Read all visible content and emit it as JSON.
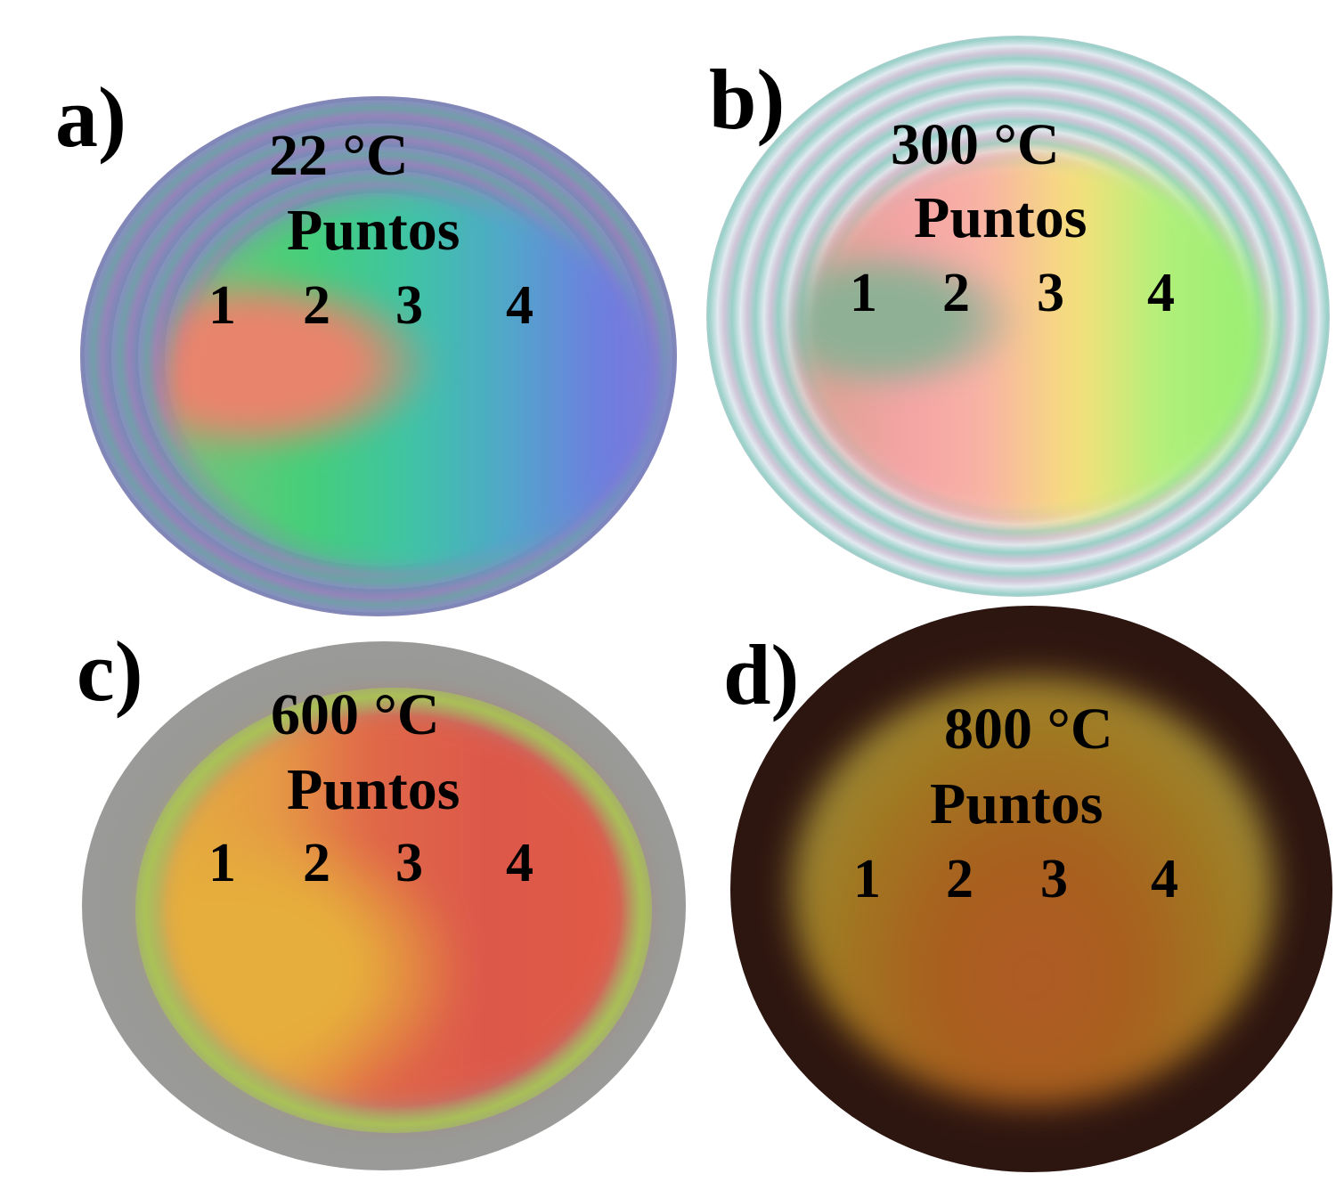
{
  "panels": [
    {
      "letter": "a)",
      "temperature": "22 °C",
      "points_label": "Puntos",
      "points": [
        "1",
        "2",
        "3",
        "4"
      ]
    },
    {
      "letter": "b)",
      "temperature": "300 °C",
      "points_label": "Puntos",
      "points": [
        "1",
        "2",
        "3",
        "4"
      ]
    },
    {
      "letter": "c)",
      "temperature": "600 °C",
      "points_label": "Puntos",
      "points": [
        "1",
        "2",
        "3",
        "4"
      ]
    },
    {
      "letter": "d)",
      "temperature": "800 °C",
      "points_label": "Puntos",
      "points": [
        "1",
        "2",
        "3",
        "4"
      ]
    }
  ],
  "colors": {
    "background": "#ffffff",
    "text": "#000000"
  }
}
